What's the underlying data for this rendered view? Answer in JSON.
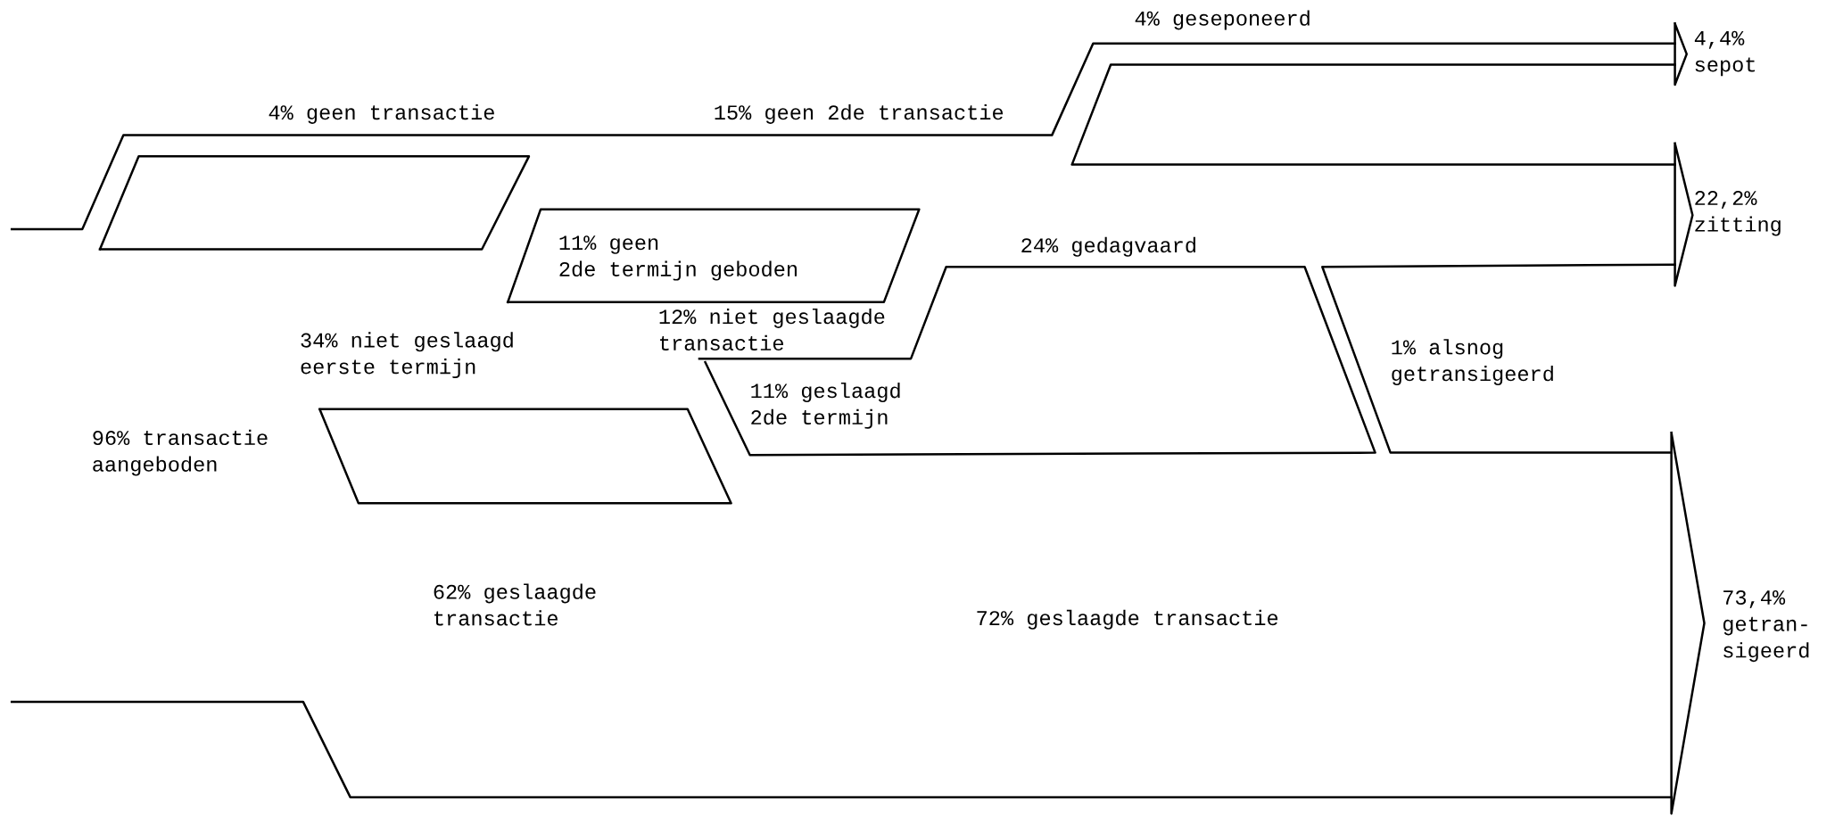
{
  "chart_data": {
    "type": "other",
    "categories": [
      "geen transactie",
      "geen 2de transactie",
      "geseponeerd",
      "sepot",
      "geen\n2de termijn geboden",
      "gedagvaard",
      "zitting",
      "niet geslaagd\neerste termijn",
      "niet geslaagde\ntransactie",
      "geslaagd\n2de termijn",
      "alsnog\ngetransigeerd",
      "transactie\naangeboden",
      "geslaagde\ntransactie",
      "geslaagde transactie",
      "getran-\nsigeerd"
    ],
    "values": [
      4,
      15,
      4,
      4.4,
      11,
      24,
      22.2,
      34,
      12,
      11,
      1,
      96,
      62,
      72,
      73.4
    ],
    "value_labels": [
      "4%",
      "15%",
      "4%",
      "4,4%",
      "11%",
      "24%",
      "22,2%",
      "34%",
      "12%",
      "11%",
      "1%",
      "96%",
      "62%",
      "72%",
      "73,4%"
    ]
  }
}
